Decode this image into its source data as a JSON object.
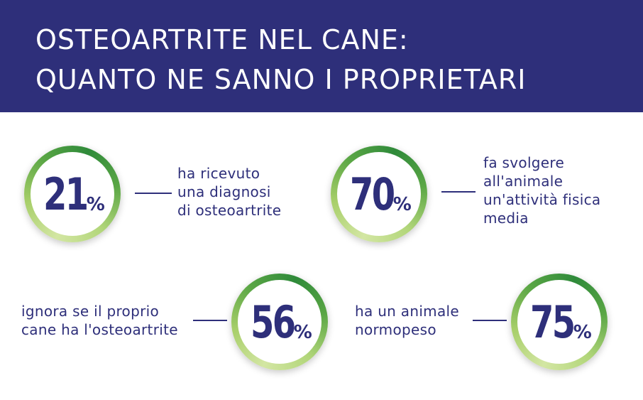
{
  "header": {
    "title_line1": "OSTEOARTRITE NEL CANE:",
    "title_line2": "QUANTO NE SANNO I PROPRIETARI"
  },
  "stats": [
    {
      "value": "21",
      "unit": "%",
      "lines": [
        "ha ricevuto",
        "una diagnosi",
        "di osteoartrite"
      ]
    },
    {
      "value": "70",
      "unit": "%",
      "lines": [
        "fa svolgere",
        "all'animale",
        "un'attività fisica",
        "media"
      ]
    },
    {
      "value": "56",
      "unit": "%",
      "lines": [
        "ignora se il proprio",
        "cane ha l'osteoartrite"
      ]
    },
    {
      "value": "75",
      "unit": "%",
      "lines": [
        "ha un animale",
        "normopeso"
      ]
    }
  ],
  "colors": {
    "navy": "#2e2f7a",
    "ring_green": "#5aa645",
    "ring_light": "#d3e6a3"
  }
}
